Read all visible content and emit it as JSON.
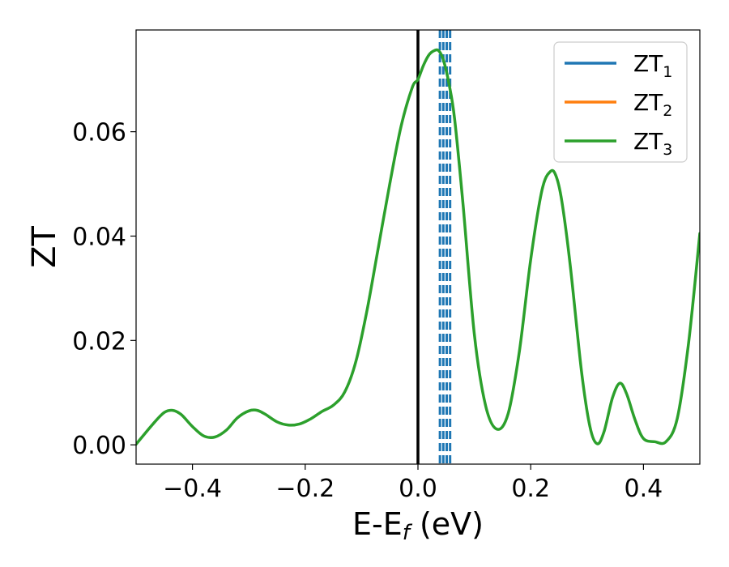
{
  "chart_data": {
    "type": "line",
    "xlabel": "E-E",
    "xlabel_sub": "f",
    "xlabel_unit": " (eV)",
    "ylabel": "ZT",
    "xlim": [
      -0.5,
      0.5
    ],
    "ylim": [
      -0.0037,
      0.0795
    ],
    "xticks": [
      -0.4,
      -0.2,
      0.0,
      0.2,
      0.4
    ],
    "xtick_labels": [
      "−0.4",
      "−0.2",
      "0.0",
      "0.2",
      "0.4"
    ],
    "yticks": [
      0.0,
      0.02,
      0.04,
      0.06
    ],
    "ytick_labels": [
      "0.00",
      "0.02",
      "0.04",
      "0.06"
    ],
    "grid": false,
    "legend_position": "top-right",
    "colors": {
      "ZT1": "#1f77b4",
      "ZT2": "#ff7f0e",
      "ZT3": "#2ca02c",
      "fermi": "#000000"
    },
    "series": [
      {
        "name": "ZT",
        "sub": "1",
        "color": "#1f77b4"
      },
      {
        "name": "ZT",
        "sub": "2",
        "color": "#ff7f0e"
      },
      {
        "name": "ZT",
        "sub": "3",
        "color": "#2ca02c",
        "x": [
          -0.5,
          -0.47,
          -0.45,
          -0.435,
          -0.42,
          -0.4,
          -0.38,
          -0.36,
          -0.34,
          -0.32,
          -0.3,
          -0.285,
          -0.27,
          -0.25,
          -0.23,
          -0.21,
          -0.19,
          -0.17,
          -0.15,
          -0.13,
          -0.11,
          -0.09,
          -0.07,
          -0.05,
          -0.03,
          -0.01,
          0.0,
          0.01,
          0.02,
          0.03,
          0.037,
          0.045,
          0.055,
          0.065,
          0.08,
          0.1,
          0.12,
          0.14,
          0.16,
          0.18,
          0.2,
          0.22,
          0.235,
          0.245,
          0.255,
          0.27,
          0.29,
          0.305,
          0.318,
          0.33,
          0.345,
          0.358,
          0.37,
          0.385,
          0.4,
          0.42,
          0.44,
          0.46,
          0.48,
          0.5
        ],
        "y": [
          0.0001,
          0.004,
          0.0062,
          0.0066,
          0.0058,
          0.0035,
          0.0017,
          0.0015,
          0.0028,
          0.0052,
          0.0065,
          0.0066,
          0.0058,
          0.0044,
          0.0038,
          0.004,
          0.005,
          0.0064,
          0.0076,
          0.0101,
          0.016,
          0.026,
          0.038,
          0.05,
          0.061,
          0.0685,
          0.07,
          0.0728,
          0.0748,
          0.0756,
          0.0755,
          0.0738,
          0.0692,
          0.0625,
          0.046,
          0.0212,
          0.0075,
          0.003,
          0.006,
          0.018,
          0.0355,
          0.0488,
          0.0524,
          0.0515,
          0.0468,
          0.0345,
          0.0142,
          0.0035,
          0.0002,
          0.0025,
          0.009,
          0.0118,
          0.0098,
          0.0048,
          0.0012,
          0.0006,
          0.0006,
          0.0051,
          0.0195,
          0.0405
        ]
      }
    ],
    "vlines": [
      {
        "x": 0.0,
        "style": "solid",
        "color": "#000000"
      },
      {
        "x": 0.039,
        "style": "dashed",
        "color": "#1f77b4"
      },
      {
        "x": 0.045,
        "style": "dashed",
        "color": "#1f77b4"
      },
      {
        "x": 0.051,
        "style": "dashed",
        "color": "#1f77b4"
      },
      {
        "x": 0.057,
        "style": "dashed",
        "color": "#1f77b4"
      }
    ]
  }
}
